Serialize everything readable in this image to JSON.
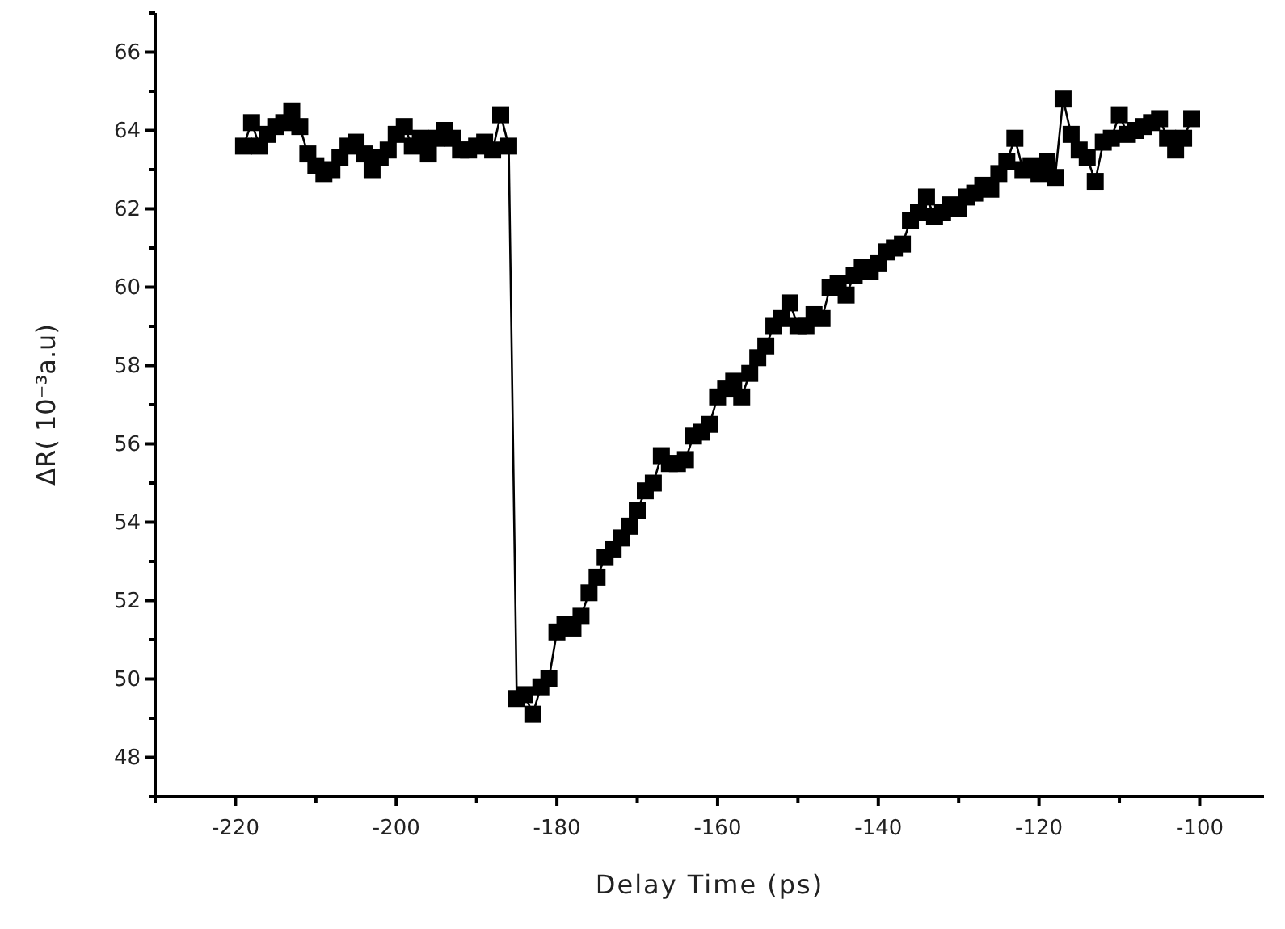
{
  "chart_data": {
    "type": "line",
    "xlabel": "Delay Time (ps)",
    "ylabel": "ΔR( 10⁻³a.u)",
    "marker": "square",
    "xlim": [
      -230,
      -92
    ],
    "ylim": [
      47,
      67
    ],
    "xticks": [
      {
        "value": -230,
        "label": null
      },
      -220,
      {
        "value": -210,
        "label": null
      },
      -200,
      {
        "value": -190,
        "label": null
      },
      -180,
      {
        "value": -170,
        "label": null
      },
      -160,
      {
        "value": -150,
        "label": null
      },
      -140,
      {
        "value": -130,
        "label": null
      },
      -120,
      {
        "value": -110,
        "label": null
      },
      -100
    ],
    "yticks": [
      {
        "value": 47,
        "label": null
      },
      48,
      {
        "value": 49,
        "label": null
      },
      50,
      {
        "value": 51,
        "label": null
      },
      52,
      {
        "value": 53,
        "label": null
      },
      54,
      {
        "value": 55,
        "label": null
      },
      56,
      {
        "value": 57,
        "label": null
      },
      58,
      {
        "value": 59,
        "label": null
      },
      60,
      {
        "value": 61,
        "label": null
      },
      62,
      {
        "value": 63,
        "label": null
      },
      64,
      {
        "value": 65,
        "label": null
      },
      66,
      {
        "value": 67,
        "label": null
      }
    ],
    "series": [
      {
        "color": "#000000",
        "x": [
          -219,
          -218,
          -217,
          -216,
          -215,
          -214,
          -213,
          -212,
          -211,
          -210,
          -209,
          -208,
          -207,
          -206,
          -205,
          -204,
          -203,
          -202,
          -201,
          -200,
          -199,
          -198,
          -197,
          -196,
          -195,
          -194,
          -193,
          -192,
          -191,
          -190,
          -189,
          -188,
          -187,
          -186,
          -185,
          -184,
          -183,
          -182,
          -181,
          -180,
          -179,
          -178,
          -177,
          -176,
          -175,
          -174,
          -173,
          -172,
          -171,
          -170,
          -169,
          -168,
          -167,
          -166,
          -165,
          -164,
          -163,
          -162,
          -161,
          -160,
          -159,
          -158,
          -157,
          -156,
          -155,
          -154,
          -153,
          -152,
          -151,
          -150,
          -149,
          -148,
          -147,
          -146,
          -145,
          -144,
          -143,
          -142,
          -141,
          -140,
          -139,
          -138,
          -137,
          -136,
          -135,
          -134,
          -133,
          -132,
          -131,
          -130,
          -129,
          -128,
          -127,
          -126,
          -125,
          -124,
          -123,
          -122,
          -121,
          -120,
          -119,
          -118,
          -117,
          -116,
          -115,
          -114,
          -113,
          -112,
          -111,
          -110,
          -109,
          -108,
          -107,
          -106,
          -105,
          -104,
          -103,
          -102,
          -101
        ],
        "values": [
          63.6,
          64.2,
          63.6,
          63.9,
          64.1,
          64.2,
          64.5,
          64.1,
          63.4,
          63.1,
          62.9,
          63.0,
          63.3,
          63.6,
          63.7,
          63.4,
          63.0,
          63.3,
          63.5,
          63.9,
          64.1,
          63.6,
          63.8,
          63.4,
          63.8,
          64.0,
          63.8,
          63.5,
          63.5,
          63.6,
          63.7,
          63.5,
          64.4,
          63.6,
          49.5,
          49.6,
          49.1,
          49.8,
          50.0,
          51.2,
          51.4,
          51.3,
          51.6,
          52.2,
          52.6,
          53.1,
          53.3,
          53.6,
          53.9,
          54.3,
          54.8,
          55.0,
          55.7,
          55.5,
          55.5,
          55.6,
          56.2,
          56.3,
          56.5,
          57.2,
          57.4,
          57.6,
          57.2,
          57.8,
          58.2,
          58.5,
          59.0,
          59.2,
          59.6,
          59.0,
          59.0,
          59.3,
          59.2,
          60.0,
          60.1,
          59.8,
          60.3,
          60.5,
          60.4,
          60.6,
          60.9,
          61.0,
          61.1,
          61.7,
          61.9,
          62.3,
          61.8,
          61.9,
          62.1,
          62.0,
          62.3,
          62.4,
          62.6,
          62.5,
          62.9,
          63.2,
          63.8,
          63.0,
          63.1,
          62.9,
          63.2,
          62.8,
          64.8,
          63.9,
          63.5,
          63.3,
          62.7,
          63.7,
          63.8,
          64.4,
          63.9,
          64.0,
          64.1,
          64.2,
          64.3,
          63.8,
          63.5,
          63.8,
          64.3
        ]
      }
    ]
  }
}
